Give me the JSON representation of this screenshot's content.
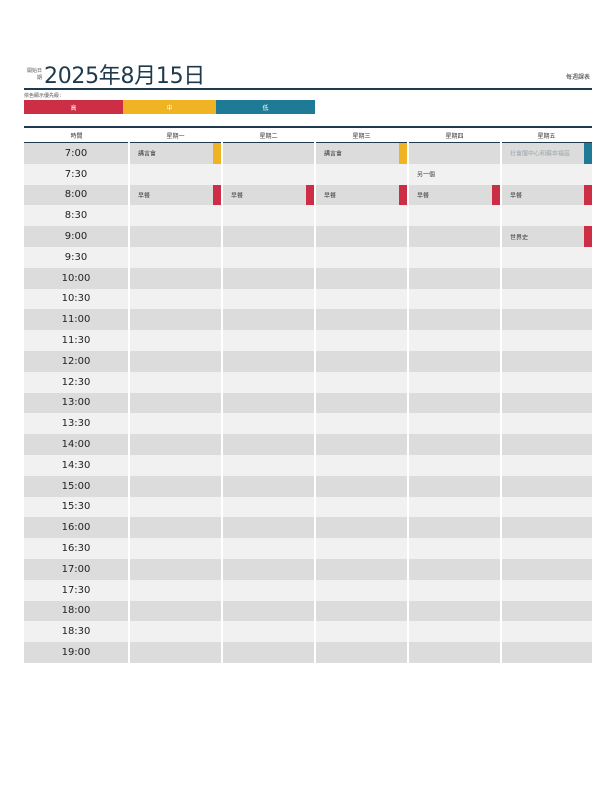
{
  "header": {
    "start_label": "開始日期",
    "date": "2025年8月15日",
    "title": "每週課表"
  },
  "priority": {
    "label": "依色顯示優先級：",
    "levels": [
      {
        "name": "高",
        "color": "#cc2e45"
      },
      {
        "name": "中",
        "color": "#f0b323"
      },
      {
        "name": "低",
        "color": "#1f7a96"
      }
    ]
  },
  "table": {
    "headers": [
      "時間",
      "星期一",
      "星期二",
      "星期三",
      "星期四",
      "星期五"
    ],
    "times": [
      "7:00",
      "7:30",
      "8:00",
      "8:30",
      "9:00",
      "9:30",
      "10:00",
      "10:30",
      "11:00",
      "11:30",
      "12:00",
      "12:30",
      "13:00",
      "13:30",
      "14:00",
      "14:30",
      "15:00",
      "15:30",
      "16:00",
      "16:30",
      "17:00",
      "17:30",
      "18:00",
      "18:30",
      "19:00"
    ],
    "events": [
      {
        "row": 0,
        "col": 1,
        "text": "講言會",
        "priority": "中"
      },
      {
        "row": 0,
        "col": 3,
        "text": "講言會",
        "priority": "中"
      },
      {
        "row": 0,
        "col": 5,
        "text": "社會服中心和蘇卒福茲",
        "priority": "低",
        "muted": true
      },
      {
        "row": 1,
        "col": 4,
        "text": "另一個"
      },
      {
        "row": 2,
        "col": 1,
        "text": "早餐",
        "priority": "高"
      },
      {
        "row": 2,
        "col": 2,
        "text": "早餐",
        "priority": "高"
      },
      {
        "row": 2,
        "col": 3,
        "text": "早餐",
        "priority": "高"
      },
      {
        "row": 2,
        "col": 4,
        "text": "早餐",
        "priority": "高"
      },
      {
        "row": 2,
        "col": 5,
        "text": "早餐",
        "priority": "高"
      },
      {
        "row": 4,
        "col": 5,
        "text": "世界史",
        "priority": "高"
      }
    ]
  }
}
